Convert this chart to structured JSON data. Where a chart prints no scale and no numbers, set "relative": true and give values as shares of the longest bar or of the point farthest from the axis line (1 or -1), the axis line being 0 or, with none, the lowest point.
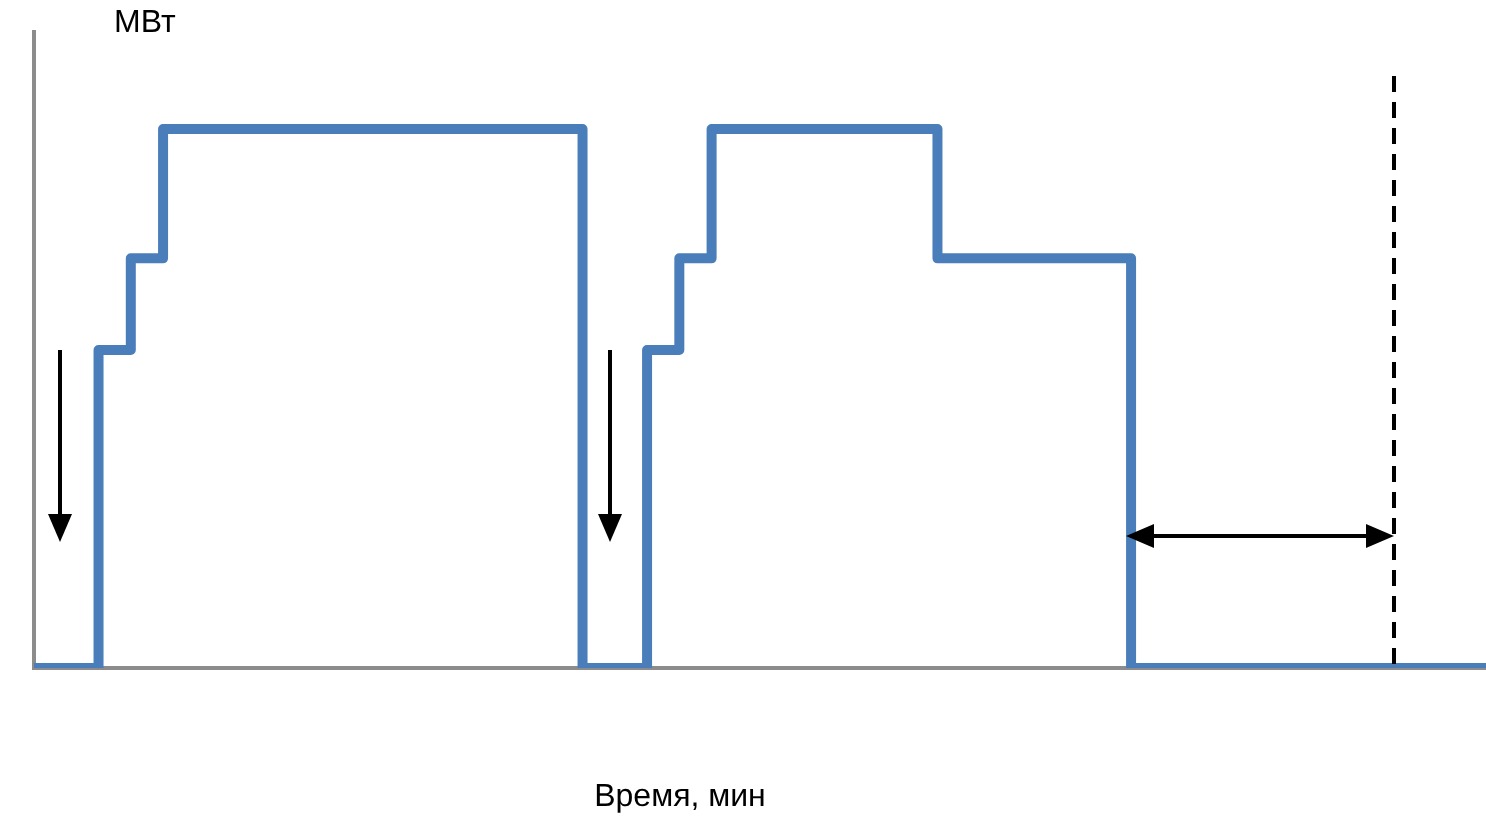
{
  "chart_data": {
    "type": "step",
    "xlabel": "Время, мин",
    "ylabel": "МВт",
    "categories": [
      null,
      null,
      null,
      null,
      null,
      null,
      null,
      null,
      null,
      null,
      null,
      null,
      null,
      null,
      null,
      null,
      null,
      null,
      null,
      null,
      null,
      null,
      null,
      null,
      null,
      null,
      null,
      null,
      null,
      null,
      null,
      null,
      null,
      null,
      null,
      null,
      null,
      null,
      null,
      null,
      null,
      null,
      null,
      null,
      null,
      null,
      null,
      null,
      null,
      null,
      null,
      null,
      null,
      null,
      null,
      null,
      null,
      null,
      null,
      null,
      null,
      null,
      null,
      null,
      null,
      null,
      null,
      null,
      null,
      null,
      null,
      null,
      null,
      null,
      null,
      null,
      null,
      null,
      null,
      null,
      null,
      null,
      null,
      null,
      null,
      null,
      null,
      null,
      null,
      null,
      null
    ],
    "values": [
      0,
      0,
      0,
      0,
      0.59,
      0.59,
      0.76,
      0.76,
      1,
      1,
      1,
      1,
      1,
      1,
      1,
      1,
      1,
      1,
      1,
      1,
      1,
      1,
      1,
      1,
      1,
      1,
      1,
      1,
      1,
      1,
      1,
      1,
      1,
      1,
      0,
      0,
      0,
      0,
      0.59,
      0.59,
      0.76,
      0.76,
      1,
      1,
      1,
      1,
      1,
      1,
      1,
      1,
      1,
      1,
      1,
      1,
      1,
      1,
      0.76,
      0.76,
      0.76,
      0.76,
      0.76,
      0.76,
      0.76,
      0.76,
      0.76,
      0.76,
      0.76,
      0.76,
      0,
      0,
      0,
      0,
      0,
      0,
      0,
      0,
      0,
      0,
      0,
      0,
      0,
      0,
      0,
      0,
      0,
      0,
      0,
      0,
      0,
      0,
      0
    ],
    "color": "#4a7ebb",
    "relative": true,
    "marker": "none",
    "line_style": "solid",
    "grid": false,
    "legend": false,
    "tick_labels": false
  }
}
